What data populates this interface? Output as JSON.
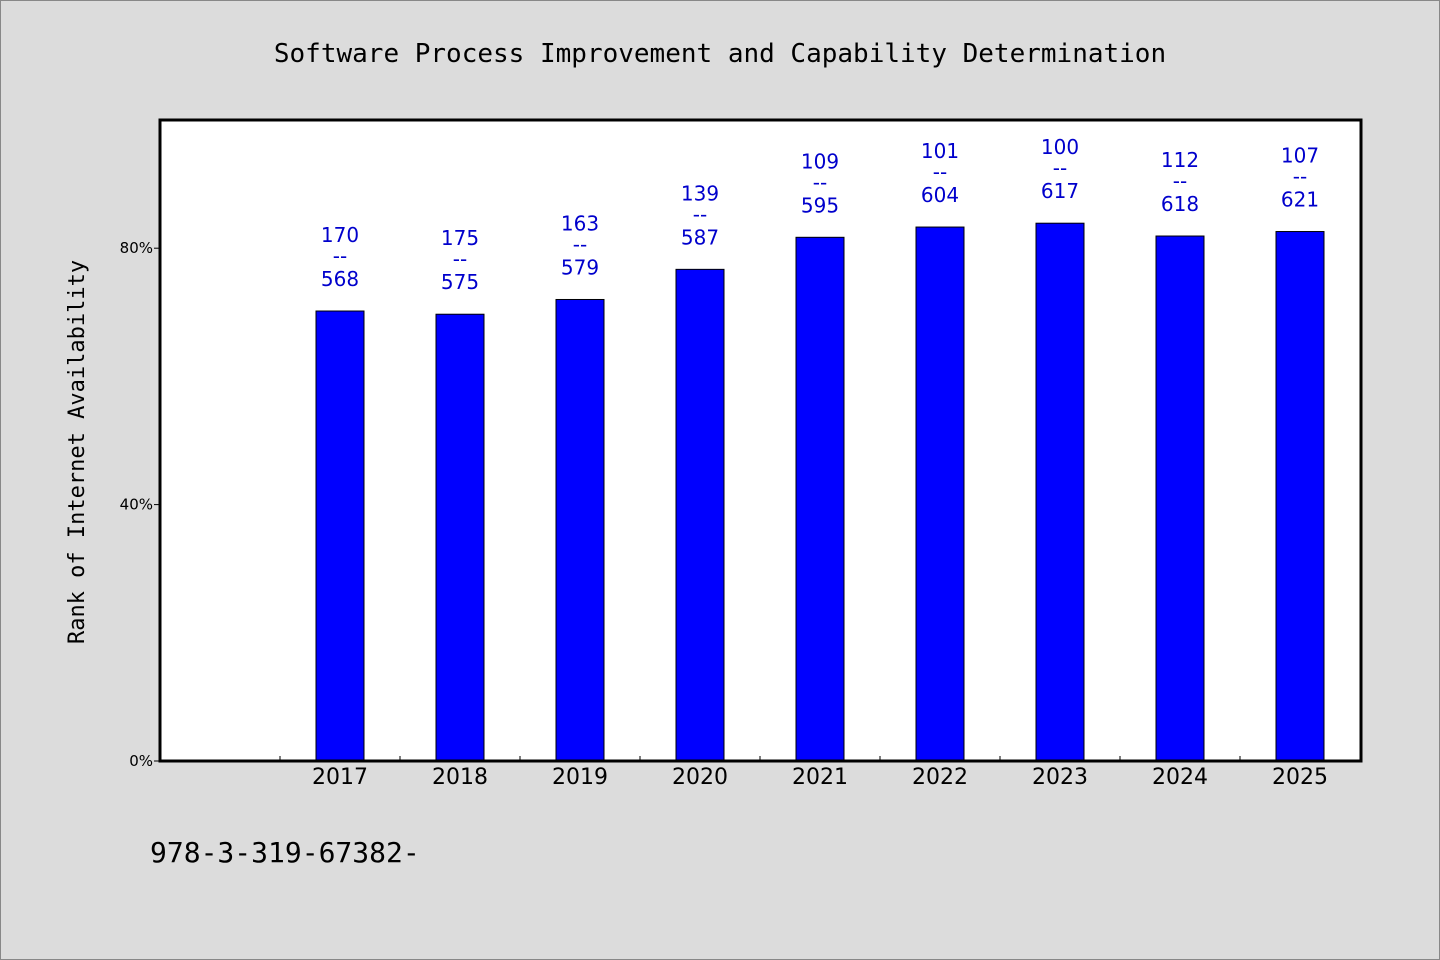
{
  "chart_data": {
    "type": "bar",
    "title": "Software Process Improvement and Capability Determination",
    "ylabel": "Rank of Internet Availability",
    "xlabel": "",
    "categories": [
      "2017",
      "2018",
      "2019",
      "2020",
      "2021",
      "2022",
      "2023",
      "2024",
      "2025"
    ],
    "values": [
      70.2,
      69.7,
      72.0,
      76.7,
      81.7,
      83.3,
      83.9,
      81.9,
      82.6
    ],
    "bar_labels": [
      {
        "top": "170",
        "sep": "--",
        "bottom": "568"
      },
      {
        "top": "175",
        "sep": "--",
        "bottom": "575"
      },
      {
        "top": "163",
        "sep": "--",
        "bottom": "579"
      },
      {
        "top": "139",
        "sep": "--",
        "bottom": "587"
      },
      {
        "top": "109",
        "sep": "--",
        "bottom": "595"
      },
      {
        "top": "101",
        "sep": "--",
        "bottom": "604"
      },
      {
        "top": "100",
        "sep": "--",
        "bottom": "617"
      },
      {
        "top": "112",
        "sep": "--",
        "bottom": "618"
      },
      {
        "top": "107",
        "sep": "--",
        "bottom": "621"
      }
    ],
    "yticks": [
      {
        "value": 0,
        "label": "0%"
      },
      {
        "value": 40,
        "label": "40%"
      },
      {
        "value": 80,
        "label": "80%"
      }
    ],
    "ylim": [
      0,
      100
    ],
    "grid": false,
    "bar_color": "#0000ff",
    "label_color": "#0000cc",
    "background": "#dcdcdc",
    "plot_background": "#ffffff"
  },
  "footer": {
    "text": "978-3-319-67382-"
  }
}
